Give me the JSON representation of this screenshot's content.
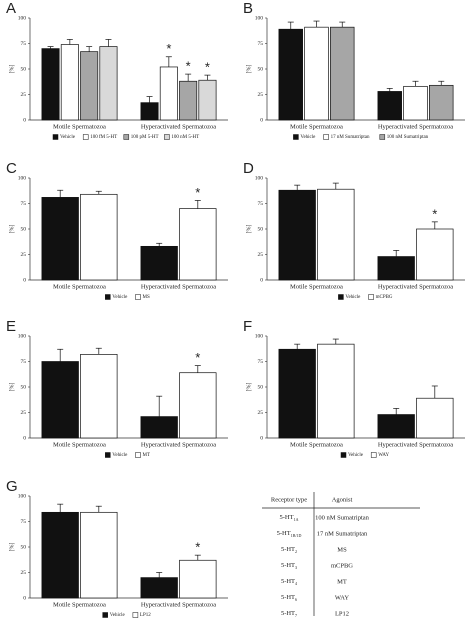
{
  "chart_data": [
    {
      "type": "bar",
      "label": "A",
      "ylabel": "[%]",
      "categories": [
        "Motile Spermatozoa",
        "Hyperactivated Spermatozoa"
      ],
      "ylim": [
        0,
        100
      ],
      "yticks": [
        0,
        25,
        50,
        75,
        100
      ],
      "legend": "bottom",
      "series": [
        {
          "name": "Vehicle",
          "color": "#111111",
          "values": [
            70,
            17
          ],
          "errors": [
            2,
            6
          ],
          "annotations": [
            null,
            null
          ]
        },
        {
          "name": "100 fM 5-HT",
          "color": "#ffffff",
          "values": [
            74,
            52
          ],
          "errors": [
            5,
            10
          ],
          "annotations": [
            null,
            "*"
          ]
        },
        {
          "name": "100 pM 5-HT",
          "color": "#a6a6a6",
          "values": [
            67,
            38
          ],
          "errors": [
            5,
            7
          ],
          "annotations": [
            null,
            "*"
          ]
        },
        {
          "name": "100 nM 5-HT",
          "color": "#d9d9d9",
          "values": [
            72,
            39
          ],
          "errors": [
            7,
            5
          ],
          "annotations": [
            null,
            "*"
          ]
        }
      ]
    },
    {
      "type": "bar",
      "label": "B",
      "ylabel": "[%]",
      "categories": [
        "Motile Spermatozoa",
        "Hyperactivated Spermatozoa"
      ],
      "ylim": [
        0,
        100
      ],
      "yticks": [
        0,
        25,
        50,
        75,
        100
      ],
      "legend": "bottom",
      "series": [
        {
          "name": "Vehicle",
          "color": "#111111",
          "values": [
            89,
            28
          ],
          "errors": [
            7,
            3
          ],
          "annotations": [
            null,
            null
          ]
        },
        {
          "name": "17 nM Sumatriptan",
          "color": "#ffffff",
          "values": [
            91,
            33
          ],
          "errors": [
            6,
            5
          ],
          "annotations": [
            null,
            null
          ]
        },
        {
          "name": "100 nM Sumatriptan",
          "color": "#a6a6a6",
          "values": [
            91,
            34
          ],
          "errors": [
            5,
            4
          ],
          "annotations": [
            null,
            null
          ]
        }
      ]
    },
    {
      "type": "bar",
      "label": "C",
      "ylabel": "[%]",
      "categories": [
        "Motile Spermatozoa",
        "Hyperactivated Spermatozoa"
      ],
      "ylim": [
        0,
        100
      ],
      "yticks": [
        0,
        25,
        50,
        75,
        100
      ],
      "legend": "bottom",
      "series": [
        {
          "name": "Vehicle",
          "color": "#111111",
          "values": [
            81,
            33
          ],
          "errors": [
            7,
            3
          ],
          "annotations": [
            null,
            null
          ]
        },
        {
          "name": "MS",
          "color": "#ffffff",
          "values": [
            84,
            70
          ],
          "errors": [
            3,
            8
          ],
          "annotations": [
            null,
            "*"
          ]
        }
      ]
    },
    {
      "type": "bar",
      "label": "D",
      "ylabel": "[%]",
      "categories": [
        "Motile Spermatozoa",
        "Hyperactivated Spermatozoa"
      ],
      "ylim": [
        0,
        100
      ],
      "yticks": [
        0,
        25,
        50,
        75,
        100
      ],
      "legend": "bottom",
      "series": [
        {
          "name": "Vehicle",
          "color": "#111111",
          "values": [
            88,
            23
          ],
          "errors": [
            5,
            6
          ],
          "annotations": [
            null,
            null
          ]
        },
        {
          "name": "mCPBG",
          "color": "#ffffff",
          "values": [
            89,
            50
          ],
          "errors": [
            6,
            7
          ],
          "annotations": [
            null,
            "*"
          ]
        }
      ]
    },
    {
      "type": "bar",
      "label": "E",
      "ylabel": "[%]",
      "categories": [
        "Motile Spermatozoa",
        "Hyperactivated Spermatozoa"
      ],
      "ylim": [
        0,
        100
      ],
      "yticks": [
        0,
        25,
        50,
        75,
        100
      ],
      "legend": "bottom",
      "series": [
        {
          "name": "Vehicle",
          "color": "#111111",
          "values": [
            75,
            21
          ],
          "errors": [
            12,
            20
          ],
          "annotations": [
            null,
            null
          ]
        },
        {
          "name": "MT",
          "color": "#ffffff",
          "values": [
            82,
            64
          ],
          "errors": [
            6,
            7
          ],
          "annotations": [
            null,
            "*"
          ]
        }
      ]
    },
    {
      "type": "bar",
      "label": "F",
      "ylabel": "[%]",
      "categories": [
        "Motile Spermatozoa",
        "Hyperactivated Spermatozoa"
      ],
      "ylim": [
        0,
        100
      ],
      "yticks": [
        0,
        25,
        50,
        75,
        100
      ],
      "legend": "bottom",
      "series": [
        {
          "name": "Vehicle",
          "color": "#111111",
          "values": [
            87,
            23
          ],
          "errors": [
            5,
            6
          ],
          "annotations": [
            null,
            null
          ]
        },
        {
          "name": "WAY",
          "color": "#ffffff",
          "values": [
            92,
            39
          ],
          "errors": [
            5,
            12
          ],
          "annotations": [
            null,
            null
          ]
        }
      ]
    },
    {
      "type": "bar",
      "label": "G",
      "ylabel": "[%]",
      "categories": [
        "Motile Spermatozoa",
        "Hyperactivated Spermatozoa"
      ],
      "ylim": [
        0,
        100
      ],
      "yticks": [
        0,
        25,
        50,
        75,
        100
      ],
      "legend": "bottom",
      "series": [
        {
          "name": "Vehicle",
          "color": "#111111",
          "values": [
            84,
            20
          ],
          "errors": [
            8,
            5
          ],
          "annotations": [
            null,
            null
          ]
        },
        {
          "name": "LP12",
          "color": "#ffffff",
          "values": [
            84,
            37
          ],
          "errors": [
            6,
            5
          ],
          "annotations": [
            null,
            "*"
          ]
        }
      ]
    }
  ],
  "table": {
    "headers": [
      "Receptor type",
      "Agonist"
    ],
    "rows": [
      {
        "receptor": "5-HT",
        "subscript": "1A",
        "agonist": "100 nM Sumatriptan"
      },
      {
        "receptor": "5-HT",
        "subscript": "1B/1D",
        "agonist": "17 nM Sumatriptan"
      },
      {
        "receptor": "5-HT",
        "subscript": "2",
        "agonist": "MS"
      },
      {
        "receptor": "5-HT",
        "subscript": "3",
        "agonist": "mCPBG"
      },
      {
        "receptor": "5-HT",
        "subscript": "4",
        "agonist": "MT"
      },
      {
        "receptor": "5-HT",
        "subscript": "6",
        "agonist": "WAY"
      },
      {
        "receptor": "5-HT",
        "subscript": "7",
        "agonist": "LP12"
      }
    ]
  }
}
